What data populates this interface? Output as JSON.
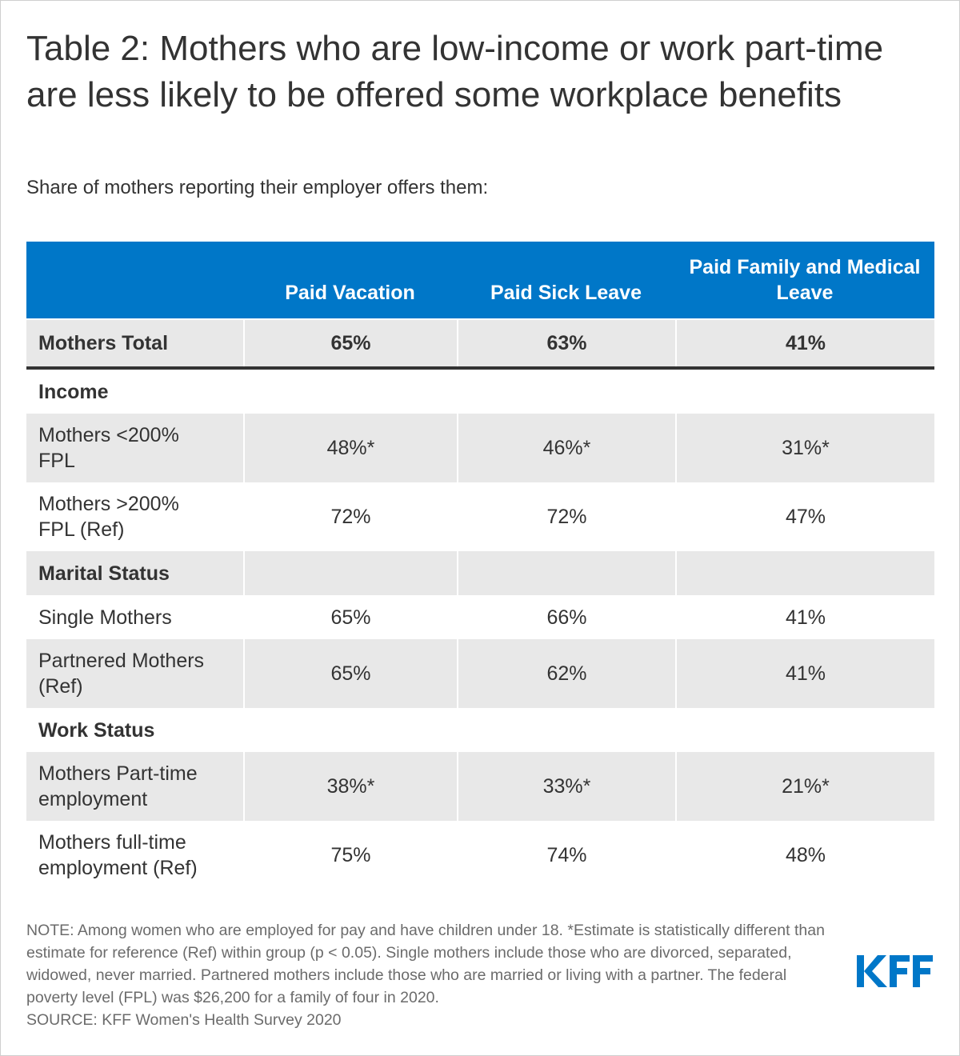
{
  "title": "Table 2: Mothers who are low-income or work part-time are less likely to be offered some workplace benefits",
  "subtitle": "Share of mothers reporting their employer offers them:",
  "chart_data": {
    "type": "table",
    "columns": [
      "",
      "Paid Vacation",
      "Paid Sick Leave",
      "Paid Family and Medical Leave"
    ],
    "rows": [
      {
        "kind": "total",
        "label": "Mothers Total",
        "values": [
          "65%",
          "63%",
          "41%"
        ]
      },
      {
        "kind": "group",
        "label": "Income"
      },
      {
        "kind": "data",
        "label": "Mothers <200% FPL",
        "values": [
          "48%*",
          "46%*",
          "31%*"
        ]
      },
      {
        "kind": "data",
        "label": "Mothers >200% FPL (Ref)",
        "values": [
          "72%",
          "72%",
          "47%"
        ]
      },
      {
        "kind": "group",
        "label": "Marital Status"
      },
      {
        "kind": "data",
        "label": "Single Mothers",
        "values": [
          "65%",
          "66%",
          "41%"
        ]
      },
      {
        "kind": "data",
        "label": "Partnered Mothers (Ref)",
        "values": [
          "65%",
          "62%",
          "41%"
        ]
      },
      {
        "kind": "group",
        "label": "Work Status"
      },
      {
        "kind": "data",
        "label": "Mothers Part-time employment",
        "values": [
          "38%*",
          "33%*",
          "21%*"
        ]
      },
      {
        "kind": "data",
        "label": "Mothers full-time employment (Ref)",
        "values": [
          "75%",
          "74%",
          "48%"
        ]
      }
    ]
  },
  "notes": {
    "note": "NOTE: Among women who are employed for pay and have children under 18. *Estimate is statistically different than estimate for reference (Ref) within group (p < 0.05). Single mothers include those who are divorced, separated, widowed, never married. Partnered mothers include those who are married or living with a partner. The federal poverty level (FPL) was $26,200 for a family of four in 2020.",
    "source": "SOURCE: KFF Women's Health Survey 2020"
  },
  "logo": {
    "text": "KFF",
    "color": "#0077c8"
  },
  "colors": {
    "header": "#0077c8",
    "shade": "#e8e8e8",
    "text": "#333333",
    "note": "#6b6b6b"
  }
}
